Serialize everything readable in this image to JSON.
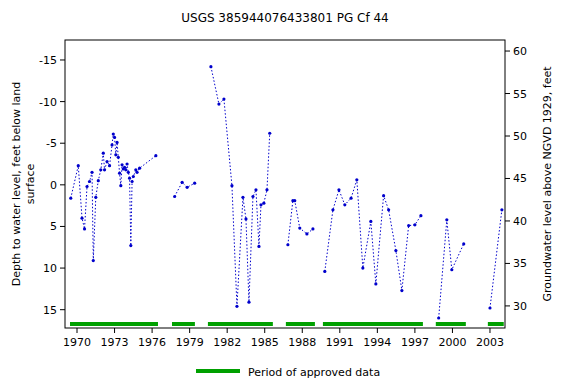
{
  "chart_data": {
    "type": "line",
    "title": "USGS 385944076433801 PG Cf  44",
    "ylabel": [
      "Depth to water level, feet below land",
      "surface"
    ],
    "y2label": "Groundwater level above NGVD 1929, feet",
    "xlim": [
      1969.04,
      2004.2
    ],
    "xticks": [
      1970,
      1973,
      1976,
      1979,
      1982,
      1985,
      1988,
      1991,
      1994,
      1997,
      2000,
      2003
    ],
    "ylim": [
      -17.4,
      17.2
    ],
    "yticks": [
      -15,
      -10,
      -5,
      0,
      5,
      10,
      15
    ],
    "y2lim": [
      27.4,
      61.3
    ],
    "y2ticks": [
      30,
      35,
      40,
      45,
      50,
      55,
      60
    ],
    "grid": false,
    "series": [
      {
        "name": "Depth to water level",
        "color": "#0000cc",
        "marker": "circle",
        "line_style": "dotted",
        "x": [
          1969.5,
          1970.1,
          1970.4,
          1970.6,
          1970.8,
          1971.0,
          1971.2,
          1971.3,
          1971.5,
          1971.7,
          1971.9,
          1972.1,
          1972.2,
          1972.4,
          1972.6,
          1972.8,
          1972.9,
          1973.0,
          1973.1,
          1973.2,
          1973.3,
          1973.4,
          1973.5,
          1973.6,
          1973.7,
          1973.8,
          1973.9,
          1974.0,
          1974.1,
          1974.2,
          1974.3,
          1974.4,
          1974.5,
          1974.7,
          1974.8,
          1975.0,
          1976.3,
          1977.0,
          1977.8,
          1978.4,
          1978.8,
          1979.4,
          1980.0,
          1980.7,
          1981.34,
          1981.74,
          1982.38,
          1982.78,
          1983.26,
          1983.5,
          1983.74,
          1984.06,
          1984.3,
          1984.54,
          1984.7,
          1984.93,
          1985.18,
          1985.4,
          1986.1,
          1986.85,
          1987.25,
          1987.4,
          1987.8,
          1988.37,
          1988.85,
          1989.3,
          1989.8,
          1990.45,
          1990.93,
          1991.4,
          1991.9,
          1992.36,
          1992.84,
          1993.48,
          1993.88,
          1994.5,
          1994.9,
          1995.48,
          1995.96,
          1996.5,
          1997.0,
          1997.48,
          1998.2,
          1998.9,
          1999.55,
          1999.95,
          2000.9,
          2002.0,
          2003.0,
          2003.95
        ],
        "values": [
          1.6,
          -2.3,
          4.0,
          5.3,
          0.2,
          -0.4,
          -1.5,
          9.1,
          1.5,
          -0.5,
          -1.8,
          -3.8,
          -1.8,
          -2.8,
          -2.3,
          -4.8,
          -6.1,
          -5.7,
          -3.6,
          -5.1,
          -3.3,
          -1.4,
          0.1,
          -2.4,
          -1.9,
          -2.1,
          -1.8,
          -2.5,
          -1.5,
          -0.8,
          7.3,
          -0.4,
          -1.0,
          -1.8,
          -1.5,
          -2.0,
          -3.5,
          null,
          1.4,
          -0.3,
          0.3,
          -0.2,
          null,
          -14.2,
          -9.7,
          -10.3,
          0.1,
          14.6,
          1.5,
          4.1,
          14.1,
          1.4,
          0.6,
          7.4,
          2.4,
          2.2,
          0.6,
          -6.2,
          null,
          7.2,
          1.9,
          1.9,
          5.2,
          5.9,
          5.3,
          null,
          10.4,
          3.0,
          0.6,
          2.4,
          1.6,
          -0.6,
          10.0,
          4.4,
          11.9,
          1.3,
          3.0,
          7.9,
          12.7,
          4.9,
          4.8,
          3.7,
          null,
          16.0,
          4.2,
          10.2,
          7.1,
          null,
          14.8,
          3.0
        ]
      }
    ],
    "approved_periods": {
      "name": "Period of approved data",
      "color": "#00a000",
      "ranges": [
        [
          1969.44,
          1976.47
        ],
        [
          1977.59,
          1979.42
        ],
        [
          1980.46,
          1985.65
        ],
        [
          1986.69,
          1989.01
        ],
        [
          1989.65,
          1997.64
        ],
        [
          1998.67,
          2001.07
        ],
        [
          2002.83,
          2004.1
        ]
      ]
    }
  }
}
